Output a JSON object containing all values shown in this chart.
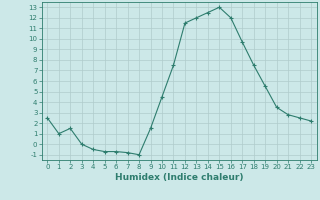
{
  "x": [
    0,
    1,
    2,
    3,
    4,
    5,
    6,
    7,
    8,
    9,
    10,
    11,
    12,
    13,
    14,
    15,
    16,
    17,
    18,
    19,
    20,
    21,
    22,
    23
  ],
  "y": [
    2.5,
    1.0,
    1.5,
    0.0,
    -0.5,
    -0.7,
    -0.7,
    -0.8,
    -1.0,
    1.5,
    4.5,
    7.5,
    11.5,
    12.0,
    12.5,
    13.0,
    12.0,
    9.7,
    7.5,
    5.5,
    3.5,
    2.8,
    2.5,
    2.2
  ],
  "line_color": "#2e7d6e",
  "marker": "+",
  "marker_size": 3,
  "bg_color": "#cce8e8",
  "grid_major_color": "#b0cccc",
  "grid_minor_color": "#c0d8d8",
  "xlabel": "Humidex (Indice chaleur)",
  "xlim": [
    -0.5,
    23.5
  ],
  "ylim": [
    -1.5,
    13.5
  ],
  "xticks": [
    0,
    1,
    2,
    3,
    4,
    5,
    6,
    7,
    8,
    9,
    10,
    11,
    12,
    13,
    14,
    15,
    16,
    17,
    18,
    19,
    20,
    21,
    22,
    23
  ],
  "yticks": [
    -1,
    0,
    1,
    2,
    3,
    4,
    5,
    6,
    7,
    8,
    9,
    10,
    11,
    12,
    13
  ],
  "tick_color": "#2e7d6e",
  "axis_color": "#2e7d6e",
  "label_color": "#2e7d6e",
  "font_size_tick": 5.0,
  "font_size_label": 6.5
}
